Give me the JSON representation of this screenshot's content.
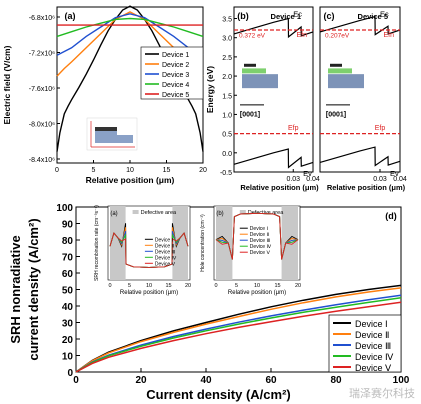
{
  "chart_data": [
    {
      "panel": "(a)",
      "type": "line",
      "xlabel": "Relative position (μm)",
      "ylabel": "Electric field (V/cm)",
      "xlim": [
        0,
        20
      ],
      "ylim": [
        -8400000.0,
        -6800000.0
      ],
      "xticks": [
        "0",
        "5",
        "10",
        "15",
        "20"
      ],
      "yticks": [
        "-6.8x10⁶",
        "-7.2x10⁶",
        "-7.6x10⁶",
        "-8.0x10⁶",
        "-8.4x10⁶"
      ],
      "legend": "center-right",
      "series": [
        {
          "name": "Device 1",
          "color": "#000000",
          "x": [
            0,
            0.4,
            1,
            1.5,
            2,
            3,
            4,
            5,
            6,
            7,
            8,
            9,
            10,
            11,
            12,
            13,
            14,
            15,
            16,
            17,
            18,
            18.5,
            19,
            19.6,
            20
          ],
          "y": [
            -8300000.0,
            -8100000.0,
            -7900000.0,
            -7820000.0,
            -7750000.0,
            -7620000.0,
            -7480000.0,
            -7330000.0,
            -7170000.0,
            -7020000.0,
            -6900000.0,
            -6800000.0,
            -6760000.0,
            -6800000.0,
            -6900000.0,
            -7020000.0,
            -7170000.0,
            -7330000.0,
            -7480000.0,
            -7620000.0,
            -7750000.0,
            -7820000.0,
            -7900000.0,
            -8100000.0,
            -8300000.0
          ]
        },
        {
          "name": "Device 2",
          "color": "#ff7f0e",
          "x": [
            0,
            1,
            2,
            4,
            6,
            8,
            10,
            12,
            14,
            16,
            18,
            19,
            20
          ],
          "y": [
            -7500000.0,
            -7420000.0,
            -7350000.0,
            -7200000.0,
            -7050000.0,
            -6900000.0,
            -6820000.0,
            -6900000.0,
            -7050000.0,
            -7200000.0,
            -7350000.0,
            -7420000.0,
            -7500000.0
          ]
        },
        {
          "name": "Device 3",
          "color": "#2050d0",
          "x": [
            0,
            2,
            4,
            6,
            8,
            10,
            12,
            14,
            16,
            18,
            20
          ],
          "y": [
            -7280000.0,
            -7200000.0,
            -7080000.0,
            -6980000.0,
            -6880000.0,
            -6840000.0,
            -6880000.0,
            -6980000.0,
            -7080000.0,
            -7200000.0,
            -7280000.0
          ]
        },
        {
          "name": "Device 4",
          "color": "#22bb22",
          "x": [
            0,
            2,
            4,
            6,
            8,
            10,
            12,
            14,
            16,
            18,
            20
          ],
          "y": [
            -7080000.0,
            -7030000.0,
            -6980000.0,
            -6940000.0,
            -6900000.0,
            -6890000.0,
            -6900000.0,
            -6940000.0,
            -6980000.0,
            -7030000.0,
            -7080000.0
          ]
        },
        {
          "name": "Device 5",
          "color": "#dd2222",
          "x": [
            0,
            20
          ],
          "y": [
            -6960000.0,
            -6960000.0
          ]
        }
      ]
    },
    {
      "panel": "(b)",
      "type": "line",
      "title": "Device 1",
      "xlabel": "Relative position (μm)",
      "ylabel": "Energy (eV)",
      "ylim": [
        -0.5,
        3.8
      ],
      "xlim": [
        0,
        0.04
      ],
      "xticks": [
        "0.03",
        "0.04"
      ],
      "yticks": [
        "-0.5",
        "0.0",
        "0.5",
        "1.0",
        "1.5",
        "2.0",
        "2.5",
        "3.0",
        "3.5"
      ],
      "annotations": [
        "0.372 eV",
        "Ec",
        "Efn",
        "Efp",
        "Ev",
        "[0001]"
      ],
      "series": [
        {
          "name": "Ec",
          "color": "#000000",
          "x": [
            0,
            0.01,
            0.02,
            0.0275,
            0.0276,
            0.034,
            0.0341,
            0.04
          ],
          "y": [
            3.1,
            3.25,
            3.4,
            3.5,
            3.02,
            3.28,
            3.05,
            3.15
          ]
        },
        {
          "name": "Efn",
          "color": "#dd2222",
          "x": [
            0,
            0.04
          ],
          "y": [
            3.2,
            3.2
          ]
        },
        {
          "name": "Efp",
          "color": "#dd2222",
          "x": [
            0,
            0.04
          ],
          "y": [
            0.5,
            0.5
          ]
        },
        {
          "name": "Ev",
          "color": "#000000",
          "x": [
            0,
            0.01,
            0.02,
            0.0275,
            0.0276,
            0.034,
            0.0341,
            0.04
          ],
          "y": [
            -0.3,
            -0.15,
            0.0,
            0.1,
            -0.38,
            -0.12,
            -0.35,
            -0.25
          ]
        }
      ]
    },
    {
      "panel": "(c)",
      "type": "line",
      "title": "Device 5",
      "xlabel": "Relative position (μm)",
      "xlim": [
        0,
        0.04
      ],
      "xticks": [
        "0.03",
        "0.04"
      ],
      "annotations": [
        "0.207eV",
        "Ec",
        "Efn",
        "Efp",
        "Ev",
        "[0001]"
      ],
      "series": [
        {
          "name": "Ec",
          "color": "#000000",
          "x": [
            0,
            0.01,
            0.02,
            0.0275,
            0.0276,
            0.034,
            0.0341,
            0.04
          ],
          "y": [
            3.15,
            3.3,
            3.45,
            3.55,
            3.08,
            3.3,
            3.1,
            3.2
          ]
        },
        {
          "name": "Efn",
          "color": "#dd2222",
          "x": [
            0,
            0.04
          ],
          "y": [
            3.2,
            3.2
          ]
        },
        {
          "name": "Efp",
          "color": "#dd2222",
          "x": [
            0,
            0.04
          ],
          "y": [
            0.5,
            0.5
          ]
        },
        {
          "name": "Ev",
          "color": "#000000",
          "x": [
            0,
            0.01,
            0.02,
            0.0275,
            0.0276,
            0.034,
            0.0341,
            0.04
          ],
          "y": [
            -0.25,
            -0.1,
            0.05,
            0.15,
            -0.33,
            -0.1,
            -0.32,
            -0.22
          ]
        }
      ]
    },
    {
      "panel": "(d)",
      "type": "line",
      "xlabel": "Current density (A/cm²)",
      "ylabel": "SRH nonradiative current density (A/cm²)",
      "xlim": [
        0,
        100
      ],
      "ylim": [
        0,
        100
      ],
      "xticks": [
        "0",
        "20",
        "40",
        "60",
        "80",
        "100"
      ],
      "yticks": [
        "0",
        "10",
        "20",
        "30",
        "40",
        "50",
        "60",
        "70",
        "80",
        "90",
        "100"
      ],
      "legend": "bottom-right",
      "series": [
        {
          "name": "Device Ⅰ",
          "color": "#000000",
          "x": [
            0,
            5,
            10,
            20,
            30,
            40,
            50,
            60,
            70,
            80,
            90,
            100
          ],
          "y": [
            0,
            7,
            12,
            19,
            25,
            30,
            35,
            39.5,
            43.5,
            47,
            50,
            52.5
          ]
        },
        {
          "name": "Device Ⅱ",
          "color": "#ff7f0e",
          "x": [
            0,
            5,
            10,
            20,
            30,
            40,
            50,
            60,
            70,
            80,
            90,
            100
          ],
          "y": [
            0,
            6.8,
            11.6,
            18.4,
            24,
            29,
            33.6,
            38,
            42,
            45.5,
            48.5,
            51
          ]
        },
        {
          "name": "Device Ⅲ",
          "color": "#2050d0",
          "x": [
            0,
            5,
            10,
            20,
            30,
            40,
            50,
            60,
            70,
            80,
            90,
            100
          ],
          "y": [
            0,
            6,
            10.2,
            16.3,
            21.5,
            26,
            30.2,
            34,
            37.5,
            40.8,
            43.8,
            46.5
          ]
        },
        {
          "name": "Device Ⅳ",
          "color": "#22bb22",
          "x": [
            0,
            5,
            10,
            20,
            30,
            40,
            50,
            60,
            70,
            80,
            90,
            100
          ],
          "y": [
            0,
            5.7,
            9.8,
            15.6,
            20.6,
            25,
            29,
            32.7,
            36.2,
            39.3,
            42.2,
            45
          ]
        },
        {
          "name": "Device Ⅴ",
          "color": "#dd2222",
          "x": [
            0,
            5,
            10,
            20,
            30,
            40,
            50,
            60,
            70,
            80,
            90,
            100
          ],
          "y": [
            0,
            5.2,
            8.9,
            14.3,
            19,
            23.2,
            27,
            30.5,
            33.8,
            36.8,
            39.6,
            42.3
          ]
        }
      ]
    },
    {
      "panel": "(a) inset",
      "type": "line",
      "xlabel": "Relative position (μm)",
      "ylabel": "SRH recombination rate (cm⁻³s⁻¹)",
      "xticks": [
        "0",
        "5",
        "10",
        "15",
        "20"
      ],
      "annotations": [
        "Defective area"
      ],
      "legend_labels": [
        "Device Ⅰ",
        "Device Ⅱ",
        "Device Ⅲ",
        "Device Ⅳ",
        "Device Ⅴ"
      ]
    },
    {
      "panel": "(b) inset",
      "type": "line",
      "xlabel": "Relative position (μm)",
      "ylabel": "Hole concentration (cm⁻³)",
      "xticks": [
        "0",
        "5",
        "10",
        "15",
        "20"
      ],
      "annotations": [
        "Defective area"
      ],
      "legend_labels": [
        "Device Ⅰ",
        "Device Ⅱ",
        "Device Ⅲ",
        "Device Ⅳ",
        "Device Ⅴ"
      ]
    }
  ],
  "watermark": "瑞泽赛尔科技"
}
